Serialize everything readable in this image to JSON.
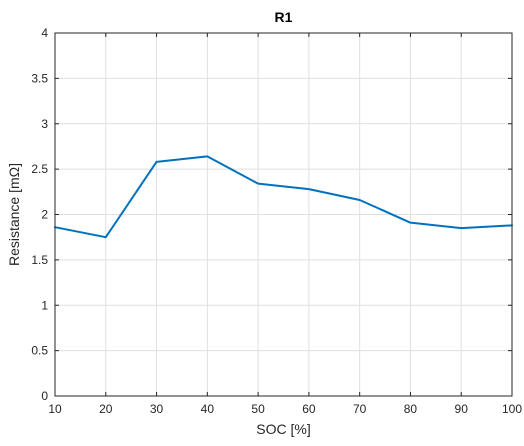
{
  "chart_data": {
    "type": "line",
    "title": "R1",
    "xlabel": "SOC  [%]",
    "ylabel": "Resistance  [mΩ]",
    "xlim": [
      10,
      100
    ],
    "ylim": [
      0,
      4
    ],
    "xticks": [
      10,
      20,
      30,
      40,
      50,
      60,
      70,
      80,
      90,
      100
    ],
    "yticks": [
      0,
      0.5,
      1,
      1.5,
      2,
      2.5,
      3,
      3.5,
      4
    ],
    "grid": true,
    "series": [
      {
        "x": [
          10,
          20,
          30,
          40,
          50,
          60,
          70,
          80,
          90,
          100
        ],
        "y": [
          1.86,
          1.75,
          2.58,
          2.64,
          2.34,
          2.28,
          2.16,
          1.91,
          1.85,
          1.88
        ],
        "color": "#0072bd"
      }
    ]
  }
}
